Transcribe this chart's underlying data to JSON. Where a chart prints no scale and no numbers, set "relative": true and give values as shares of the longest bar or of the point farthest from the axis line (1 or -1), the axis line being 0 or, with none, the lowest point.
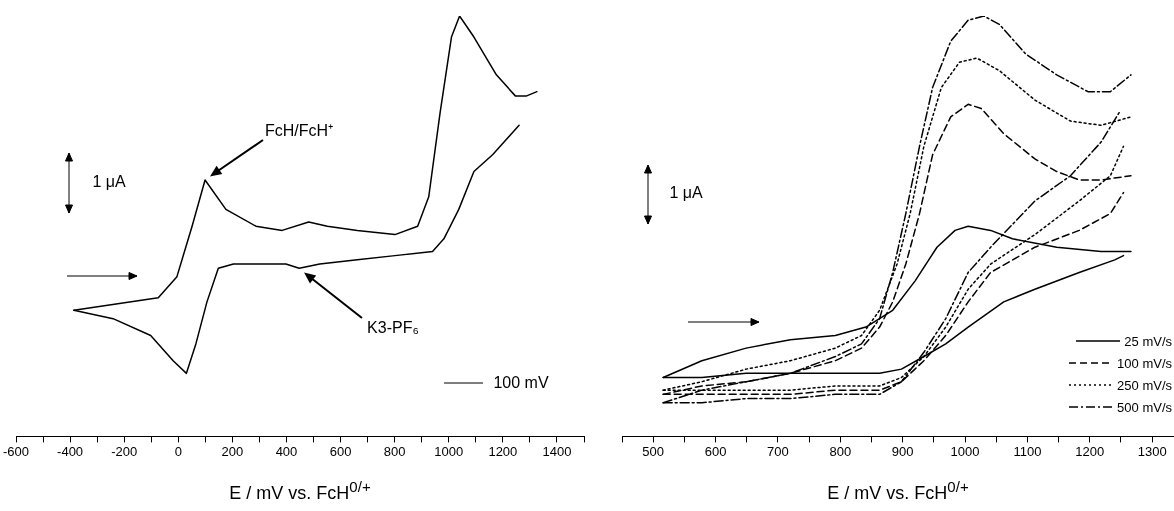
{
  "chart_data": [
    {
      "type": "line",
      "relative": true,
      "xlabel": "E / mV vs. FcH$^{0/+}$",
      "grid": false,
      "legend": false,
      "marker": "none",
      "xlim": [
        -600,
        1500
      ],
      "xticks": [
        -600,
        {
          "value": -500,
          "label": null
        },
        -400,
        {
          "value": -300,
          "label": null
        },
        -200,
        {
          "value": -100,
          "label": null
        },
        0,
        {
          "value": 100,
          "label": null
        },
        200,
        {
          "value": 300,
          "label": null
        },
        400,
        {
          "value": 500,
          "label": null
        },
        600,
        {
          "value": 700,
          "label": null
        },
        800,
        {
          "value": 900,
          "label": null
        },
        1000,
        {
          "value": 1100,
          "label": null
        },
        1200,
        {
          "value": 1300,
          "label": null
        },
        1400,
        {
          "value": 1500,
          "label": null
        }
      ],
      "annotations": [
        {
          "text": "FcH/FcH⁺",
          "x": 99,
          "y": 0.61
        },
        {
          "text": "K3-PF₆",
          "x": 450,
          "y": 0.4
        },
        "1 μA",
        "100 mV"
      ],
      "series": [
        {
          "color": "#000000",
          "line_style": "solid",
          "x": [
            -386,
            -74,
            -5,
            51,
            99,
            176,
            287,
            384,
            482,
            551,
            662,
            801,
            885,
            926,
            968,
            1010,
            1040,
            1093,
            1176,
            1246,
            1288,
            1326
          ],
          "values": [
            0.3,
            0.33,
            0.38,
            0.5,
            0.61,
            0.54,
            0.5,
            0.49,
            0.51,
            0.5,
            0.49,
            0.48,
            0.5,
            0.57,
            0.77,
            0.95,
            1.0,
            0.95,
            0.86,
            0.81,
            0.81,
            0.82
          ]
        },
        {
          "color": "#000000",
          "line_style": "solid",
          "x": [
            -386,
            -241,
            -102,
            -19,
            30,
            65,
            106,
            148,
            204,
            315,
            398,
            447,
            523,
            662,
            801,
            940,
            982,
            1037,
            1093,
            1162,
            1260
          ],
          "values": [
            0.3,
            0.28,
            0.24,
            0.18,
            0.15,
            0.22,
            0.32,
            0.4,
            0.41,
            0.41,
            0.41,
            0.4,
            0.41,
            0.42,
            0.43,
            0.44,
            0.47,
            0.54,
            0.63,
            0.67,
            0.74
          ]
        }
      ]
    },
    {
      "type": "line",
      "relative": true,
      "xlabel": "E / mV vs. FcH$^{0/+}$",
      "grid": false,
      "legend": "bottom right",
      "marker": "none",
      "xlim": [
        450,
        1335
      ],
      "xticks": [
        {
          "value": 450,
          "label": null
        },
        500,
        {
          "value": 550,
          "label": null
        },
        600,
        {
          "value": 650,
          "label": null
        },
        700,
        {
          "value": 750,
          "label": null
        },
        800,
        {
          "value": 850,
          "label": null
        },
        900,
        {
          "value": 950,
          "label": null
        },
        1000,
        {
          "value": 1050,
          "label": null
        },
        1100,
        {
          "value": 1150,
          "label": null
        },
        1200,
        {
          "value": 1250,
          "label": null
        },
        1300
      ],
      "annotations": [
        "1 μA"
      ],
      "series": [
        {
          "name": "25 mV/s",
          "color": "#000000",
          "line_style": "solid",
          "x": [
            516,
            578,
            649,
            720,
            792,
            841,
            884,
            920,
            955,
            984,
            1005,
            1041,
            1076,
            1147,
            1218,
            1266
          ],
          "values": [
            0.14,
            0.18,
            0.21,
            0.23,
            0.24,
            0.26,
            0.3,
            0.37,
            0.45,
            0.49,
            0.5,
            0.49,
            0.47,
            0.45,
            0.44,
            0.44
          ]
        },
        {
          "name": "100 mV/s",
          "color": "#000000",
          "line_style": "dashed",
          "x": [
            516,
            578,
            649,
            720,
            792,
            834,
            863,
            884,
            905,
            927,
            948,
            977,
            1005,
            1026,
            1062,
            1112,
            1147,
            1183,
            1218,
            1266
          ],
          "values": [
            0.1,
            0.12,
            0.13,
            0.15,
            0.18,
            0.21,
            0.26,
            0.32,
            0.41,
            0.53,
            0.67,
            0.76,
            0.79,
            0.78,
            0.72,
            0.66,
            0.63,
            0.61,
            0.61,
            0.62
          ]
        },
        {
          "name": "250 mV/s",
          "color": "#000000",
          "line_style": "dotted",
          "x": [
            516,
            578,
            649,
            720,
            792,
            834,
            863,
            891,
            912,
            934,
            962,
            991,
            1019,
            1055,
            1112,
            1169,
            1218,
            1266
          ],
          "values": [
            0.11,
            0.13,
            0.16,
            0.18,
            0.21,
            0.24,
            0.3,
            0.41,
            0.53,
            0.69,
            0.83,
            0.89,
            0.9,
            0.87,
            0.8,
            0.75,
            0.74,
            0.76
          ]
        },
        {
          "name": "500 mV/s",
          "color": "#000000",
          "line_style": "dashdot",
          "x": [
            516,
            578,
            649,
            720,
            792,
            834,
            863,
            884,
            905,
            927,
            948,
            977,
            1005,
            1030,
            1055,
            1097,
            1147,
            1197,
            1233,
            1266
          ],
          "values": [
            0.08,
            0.11,
            0.13,
            0.15,
            0.19,
            0.22,
            0.28,
            0.39,
            0.53,
            0.69,
            0.83,
            0.94,
            0.99,
            1.0,
            0.98,
            0.91,
            0.86,
            0.82,
            0.82,
            0.86
          ]
        },
        {
          "color": "#000000",
          "line_style": "solid",
          "x": [
            516,
            578,
            649,
            720,
            792,
            863,
            898,
            934,
            969,
            1005,
            1062,
            1112,
            1183,
            1240,
            1254
          ],
          "values": [
            0.14,
            0.14,
            0.15,
            0.15,
            0.15,
            0.15,
            0.16,
            0.19,
            0.22,
            0.26,
            0.32,
            0.35,
            0.39,
            0.42,
            0.43
          ]
        },
        {
          "color": "#000000",
          "line_style": "dashed",
          "x": [
            516,
            578,
            649,
            720,
            792,
            863,
            898,
            934,
            969,
            1005,
            1041,
            1112,
            1183,
            1233,
            1254
          ],
          "values": [
            0.1,
            0.1,
            0.1,
            0.1,
            0.11,
            0.11,
            0.13,
            0.18,
            0.24,
            0.32,
            0.39,
            0.45,
            0.49,
            0.53,
            0.58
          ]
        },
        {
          "color": "#000000",
          "line_style": "dotted",
          "x": [
            516,
            578,
            649,
            720,
            792,
            863,
            898,
            934,
            969,
            1005,
            1041,
            1112,
            1183,
            1233,
            1254
          ],
          "values": [
            0.11,
            0.11,
            0.11,
            0.11,
            0.12,
            0.12,
            0.14,
            0.19,
            0.26,
            0.35,
            0.41,
            0.48,
            0.56,
            0.62,
            0.69
          ]
        },
        {
          "color": "#000000",
          "line_style": "dashdot",
          "x": [
            516,
            578,
            649,
            720,
            792,
            863,
            898,
            934,
            969,
            1005,
            1041,
            1112,
            1169,
            1218,
            1247
          ],
          "values": [
            0.08,
            0.08,
            0.09,
            0.09,
            0.1,
            0.1,
            0.13,
            0.2,
            0.28,
            0.39,
            0.45,
            0.56,
            0.62,
            0.7,
            0.77
          ]
        }
      ]
    }
  ]
}
